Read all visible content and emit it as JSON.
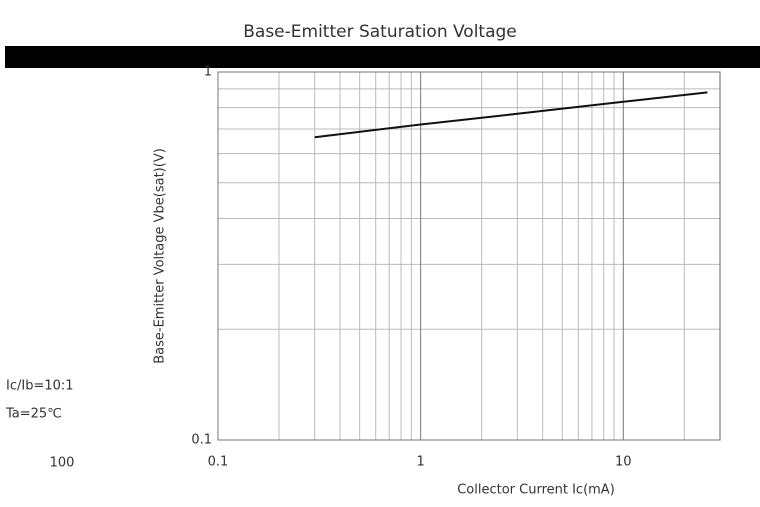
{
  "chart_data": {
    "type": "line",
    "title": "Base-Emitter Saturation Voltage",
    "x_label": "Collector Current   Ic(mA)",
    "y_label": "Base-Emitter Voltage  Vbe(sat)(V)",
    "annotations": [
      "Ic/Ib=10:1",
      "Ta=25℃",
      "100"
    ],
    "x": [
      0.3,
      1,
      3,
      10,
      26
    ],
    "series": [
      {
        "name": "Vbe(sat)",
        "color": "#111111",
        "values": [
          0.665,
          0.72,
          0.77,
          0.83,
          0.88
        ]
      }
    ],
    "xlim": [
      0.1,
      30
    ],
    "xticks": [
      0.1,
      1,
      10
    ],
    "ylim": [
      0.1,
      1
    ],
    "yticks": [
      0.1,
      1
    ],
    "log_x": true,
    "log_y": true,
    "grid": true
  }
}
